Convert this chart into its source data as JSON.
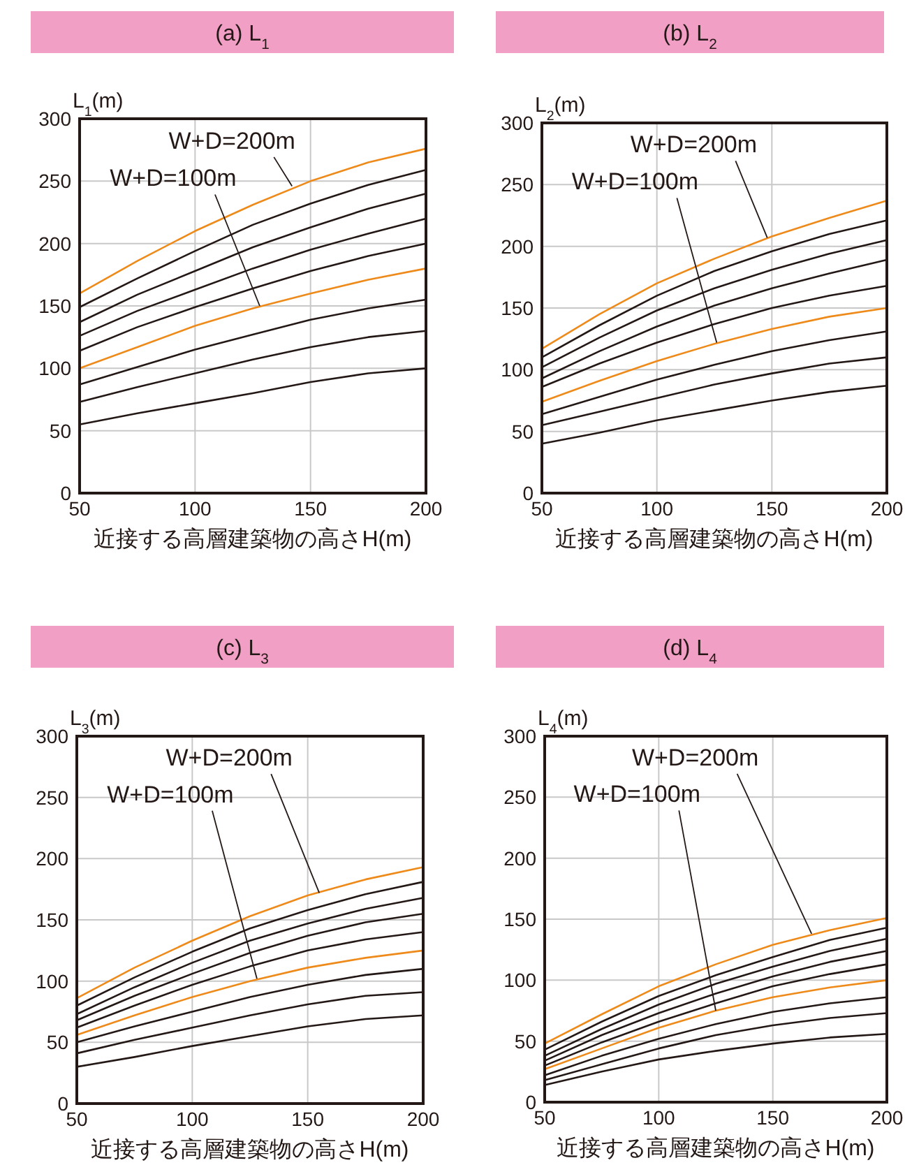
{
  "chart_data": [
    {
      "type": "line",
      "title": "(a) L$_{1}$",
      "ylabel": "L$_{1}$(m)",
      "xlabel": "近接する高層建築物の高さH(m)",
      "x": [
        50,
        75,
        100,
        125,
        150,
        175,
        200
      ],
      "xlim": [
        50,
        200
      ],
      "ylim": [
        0,
        300
      ],
      "xticks": [
        50,
        100,
        150,
        200
      ],
      "yticks": [
        0,
        50,
        100,
        150,
        200,
        250,
        300
      ],
      "grid": true,
      "marker": "none",
      "line_style": "solid",
      "series": [
        {
          "color": "#ee8a1a",
          "values": [
            160,
            186,
            210,
            231,
            250,
            265,
            276
          ]
        },
        {
          "color": "#231815",
          "values": [
            149,
            172,
            194,
            215,
            232,
            247,
            259
          ]
        },
        {
          "color": "#231815",
          "values": [
            137,
            159,
            178,
            197,
            213,
            228,
            240
          ]
        },
        {
          "color": "#231815",
          "values": [
            126,
            146,
            163,
            180,
            195,
            208,
            220
          ]
        },
        {
          "color": "#231815",
          "values": [
            114,
            133,
            149,
            164,
            178,
            190,
            200
          ]
        },
        {
          "color": "#ee8a1a",
          "values": [
            100,
            117,
            134,
            148,
            160,
            171,
            180
          ]
        },
        {
          "color": "#231815",
          "values": [
            87,
            101,
            115,
            127,
            139,
            148,
            155
          ]
        },
        {
          "color": "#231815",
          "values": [
            73,
            85,
            96,
            107,
            117,
            125,
            130
          ]
        },
        {
          "color": "#231815",
          "values": [
            55,
            64,
            72,
            80,
            89,
            96,
            100
          ]
        }
      ],
      "annotations": [
        {
          "text": "W+D=200m",
          "x": 142,
          "y": 246
        },
        {
          "text": "W+D=100m",
          "x": 128,
          "y": 150
        }
      ]
    },
    {
      "type": "line",
      "title": "(b) L$_{2}$",
      "ylabel": "L$_{2}$(m)",
      "xlabel": "近接する高層建築物の高さH(m)",
      "x": [
        50,
        75,
        100,
        125,
        150,
        175,
        200
      ],
      "xlim": [
        50,
        200
      ],
      "ylim": [
        0,
        300
      ],
      "xticks": [
        50,
        100,
        150,
        200
      ],
      "yticks": [
        0,
        50,
        100,
        150,
        200,
        250,
        300
      ],
      "grid": true,
      "marker": "none",
      "line_style": "solid",
      "series": [
        {
          "color": "#ee8a1a",
          "values": [
            117,
            145,
            170,
            190,
            208,
            223,
            237
          ]
        },
        {
          "color": "#231815",
          "values": [
            110,
            136,
            160,
            180,
            196,
            210,
            221
          ]
        },
        {
          "color": "#231815",
          "values": [
            102,
            126,
            148,
            166,
            181,
            194,
            205
          ]
        },
        {
          "color": "#231815",
          "values": [
            93,
            115,
            135,
            152,
            166,
            178,
            189
          ]
        },
        {
          "color": "#231815",
          "values": [
            86,
            105,
            122,
            137,
            150,
            160,
            168
          ]
        },
        {
          "color": "#ee8a1a",
          "values": [
            74,
            91,
            107,
            121,
            133,
            143,
            150
          ]
        },
        {
          "color": "#231815",
          "values": [
            64,
            78,
            92,
            104,
            115,
            124,
            131
          ]
        },
        {
          "color": "#231815",
          "values": [
            55,
            66,
            77,
            88,
            97,
            105,
            110
          ]
        },
        {
          "color": "#231815",
          "values": [
            40,
            49,
            59,
            67,
            75,
            82,
            87
          ]
        }
      ],
      "annotations": [
        {
          "text": "W+D=200m",
          "x": 148,
          "y": 207
        },
        {
          "text": "W+D=100m",
          "x": 126,
          "y": 122
        }
      ]
    },
    {
      "type": "line",
      "title": "(c) L$_{3}$",
      "ylabel": "L$_{3}$(m)",
      "xlabel": "近接する高層建築物の高さH(m)",
      "x": [
        50,
        75,
        100,
        125,
        150,
        175,
        200
      ],
      "xlim": [
        50,
        200
      ],
      "ylim": [
        0,
        300
      ],
      "xticks": [
        50,
        100,
        150,
        200
      ],
      "yticks": [
        0,
        50,
        100,
        150,
        200,
        250,
        300
      ],
      "grid": true,
      "marker": "none",
      "line_style": "solid",
      "series": [
        {
          "color": "#ee8a1a",
          "values": [
            86,
            111,
            133,
            153,
            170,
            183,
            193
          ]
        },
        {
          "color": "#231815",
          "values": [
            80,
            103,
            124,
            143,
            158,
            171,
            181
          ]
        },
        {
          "color": "#231815",
          "values": [
            73,
            95,
            115,
            133,
            147,
            159,
            168
          ]
        },
        {
          "color": "#231815",
          "values": [
            68,
            88,
            106,
            123,
            137,
            148,
            155
          ]
        },
        {
          "color": "#231815",
          "values": [
            62,
            80,
            97,
            112,
            125,
            134,
            140
          ]
        },
        {
          "color": "#ee8a1a",
          "values": [
            56,
            72,
            87,
            100,
            111,
            119,
            125
          ]
        },
        {
          "color": "#231815",
          "values": [
            50,
            63,
            75,
            87,
            97,
            105,
            110
          ]
        },
        {
          "color": "#231815",
          "values": [
            41,
            52,
            62,
            72,
            81,
            88,
            91
          ]
        },
        {
          "color": "#231815",
          "values": [
            30,
            38,
            47,
            55,
            63,
            69,
            72
          ]
        }
      ],
      "annotations": [
        {
          "text": "W+D=200m",
          "x": 155,
          "y": 172
        },
        {
          "text": "W+D=100m",
          "x": 128,
          "y": 102
        }
      ]
    },
    {
      "type": "line",
      "title": "(d) L$_{4}$",
      "ylabel": "L$_{4}$(m)",
      "xlabel": "近接する高層建築物の高さH(m)",
      "x": [
        50,
        75,
        100,
        125,
        150,
        175,
        200
      ],
      "xlim": [
        50,
        200
      ],
      "ylim": [
        0,
        300
      ],
      "xticks": [
        50,
        100,
        150,
        200
      ],
      "yticks": [
        0,
        50,
        100,
        150,
        200,
        250,
        300
      ],
      "grid": true,
      "marker": "none",
      "line_style": "solid",
      "series": [
        {
          "color": "#ee8a1a",
          "values": [
            48,
            72,
            95,
            113,
            129,
            141,
            151
          ]
        },
        {
          "color": "#231815",
          "values": [
            43,
            66,
            87,
            104,
            119,
            133,
            143
          ]
        },
        {
          "color": "#231815",
          "values": [
            38,
            60,
            80,
            97,
            111,
            124,
            134
          ]
        },
        {
          "color": "#231815",
          "values": [
            34,
            55,
            73,
            89,
            103,
            115,
            124
          ]
        },
        {
          "color": "#231815",
          "values": [
            30,
            49,
            66,
            81,
            95,
            105,
            113
          ]
        },
        {
          "color": "#ee8a1a",
          "values": [
            27,
            44,
            61,
            75,
            86,
            94,
            100
          ]
        },
        {
          "color": "#231815",
          "values": [
            22,
            38,
            52,
            64,
            74,
            81,
            86
          ]
        },
        {
          "color": "#231815",
          "values": [
            18,
            31,
            44,
            55,
            63,
            69,
            73
          ]
        },
        {
          "color": "#231815",
          "values": [
            14,
            25,
            35,
            42,
            48,
            53,
            56
          ]
        }
      ],
      "annotations": [
        {
          "text": "W+D=200m",
          "x": 167,
          "y": 138
        },
        {
          "text": "W+D=100m",
          "x": 125,
          "y": 75
        }
      ]
    }
  ]
}
